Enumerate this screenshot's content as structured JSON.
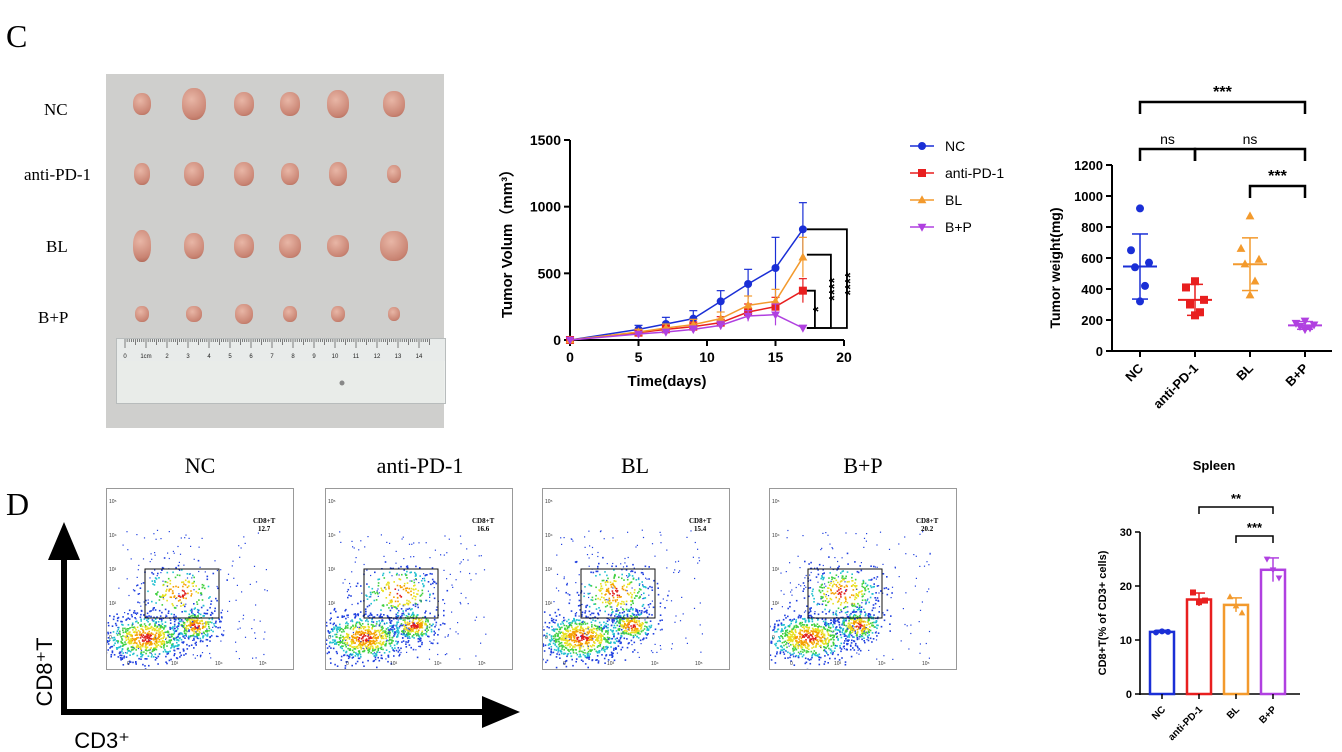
{
  "panels": {
    "c": "C",
    "d": "D"
  },
  "photo": {
    "rows": [
      "NC",
      "anti-PD-1",
      "BL",
      "B+P"
    ],
    "ruler_ticks": [
      "0",
      "1cm",
      "2",
      "3",
      "4",
      "5",
      "6",
      "7",
      "8",
      "9",
      "10",
      "11",
      "12",
      "13",
      "14"
    ]
  },
  "chart_data": [
    {
      "type": "line",
      "xlabel": "Time(days)",
      "ylabel": "Tumor Volum（mm³）",
      "xlim": [
        0,
        20
      ],
      "ylim": [
        0,
        1500
      ],
      "xticks": [
        "0",
        "5",
        "10",
        "15",
        "20"
      ],
      "yticks": [
        "0",
        "500",
        "1000",
        "1500"
      ],
      "x": [
        0,
        5,
        7,
        9,
        11,
        13,
        15,
        17
      ],
      "legend_position": "top-right",
      "series": [
        {
          "name": "NC",
          "color": "#1a2fd6",
          "marker": "circle",
          "values": [
            0,
            80,
            120,
            160,
            290,
            420,
            540,
            830
          ],
          "errors": [
            0,
            30,
            50,
            60,
            80,
            110,
            230,
            200
          ]
        },
        {
          "name": "anti-PD-1",
          "color": "#e81f1f",
          "marker": "square",
          "values": [
            0,
            55,
            80,
            100,
            130,
            210,
            250,
            370
          ],
          "errors": [
            0,
            20,
            30,
            35,
            45,
            60,
            70,
            90
          ]
        },
        {
          "name": "BL",
          "color": "#f39a2d",
          "marker": "triangle-up",
          "values": [
            0,
            60,
            90,
            115,
            160,
            260,
            290,
            620
          ],
          "errors": [
            0,
            20,
            30,
            40,
            50,
            70,
            90,
            150
          ]
        },
        {
          "name": "B+P",
          "color": "#b040e0",
          "marker": "triangle-down",
          "values": [
            0,
            45,
            60,
            80,
            110,
            180,
            190,
            90
          ],
          "errors": [
            0,
            15,
            20,
            25,
            30,
            40,
            80,
            20
          ]
        }
      ],
      "annotations": [
        "*",
        "****",
        "****"
      ]
    },
    {
      "type": "scatter",
      "ylabel": "Tumor weight(mg)",
      "ylim": [
        0,
        1200
      ],
      "yticks": [
        "0",
        "200",
        "400",
        "600",
        "800",
        "1000",
        "1200"
      ],
      "categories": [
        "NC",
        "anti-PD-1",
        "BL",
        "B+P"
      ],
      "series": [
        {
          "name": "NC",
          "color": "#1a2fd6",
          "marker": "circle",
          "mean": 545,
          "sd": 210,
          "points": [
            920,
            650,
            570,
            540,
            420,
            320
          ]
        },
        {
          "name": "anti-PD-1",
          "color": "#e81f1f",
          "marker": "square",
          "mean": 330,
          "sd": 100,
          "points": [
            450,
            410,
            330,
            300,
            250,
            230
          ]
        },
        {
          "name": "BL",
          "color": "#f39a2d",
          "marker": "triangle-up",
          "mean": 560,
          "sd": 170,
          "points": [
            870,
            660,
            590,
            560,
            450,
            360
          ]
        },
        {
          "name": "B+P",
          "color": "#b040e0",
          "marker": "triangle-down",
          "mean": 165,
          "sd": 25,
          "points": [
            195,
            180,
            170,
            160,
            150,
            140
          ]
        }
      ],
      "significance": [
        {
          "from": "NC",
          "to": "B+P",
          "label": "***"
        },
        {
          "from": "NC",
          "to": "anti-PD-1",
          "label": "ns"
        },
        {
          "from": "anti-PD-1",
          "to": "B+P",
          "label": "ns"
        },
        {
          "from": "BL",
          "to": "B+P",
          "label": "***"
        }
      ]
    },
    {
      "type": "bar",
      "title": "Spleen",
      "ylabel": "CD8+T(% of CD3+ cells)",
      "ylim": [
        0,
        30
      ],
      "yticks": [
        "0",
        "10",
        "20",
        "30"
      ],
      "categories": [
        "NC",
        "anti-PD-1",
        "BL",
        "B+P"
      ],
      "values": [
        11.5,
        17.5,
        16.5,
        23
      ],
      "errors": [
        0.3,
        1.2,
        1.3,
        2.2
      ],
      "colors": [
        "#1a2fd6",
        "#e81f1f",
        "#f39a2d",
        "#b040e0"
      ],
      "points": [
        [
          11.4,
          11.6,
          11.5
        ],
        [
          18.8,
          17.0,
          17.3
        ],
        [
          18.0,
          16.3,
          15.0
        ],
        [
          25.0,
          23.0,
          21.5
        ]
      ],
      "significance": [
        {
          "from": "anti-PD-1",
          "to": "B+P",
          "label": "**"
        },
        {
          "from": "BL",
          "to": "B+P",
          "label": "***"
        }
      ]
    }
  ],
  "flow": {
    "titles": [
      "NC",
      "anti-PD-1",
      "BL",
      "B+P"
    ],
    "gate_name": "CD8+T",
    "gate_values": [
      "12.7",
      "16.6",
      "15.4",
      "20.2"
    ],
    "y_axis_label": "CD8⁺T",
    "x_axis_label": "CD3⁺"
  }
}
